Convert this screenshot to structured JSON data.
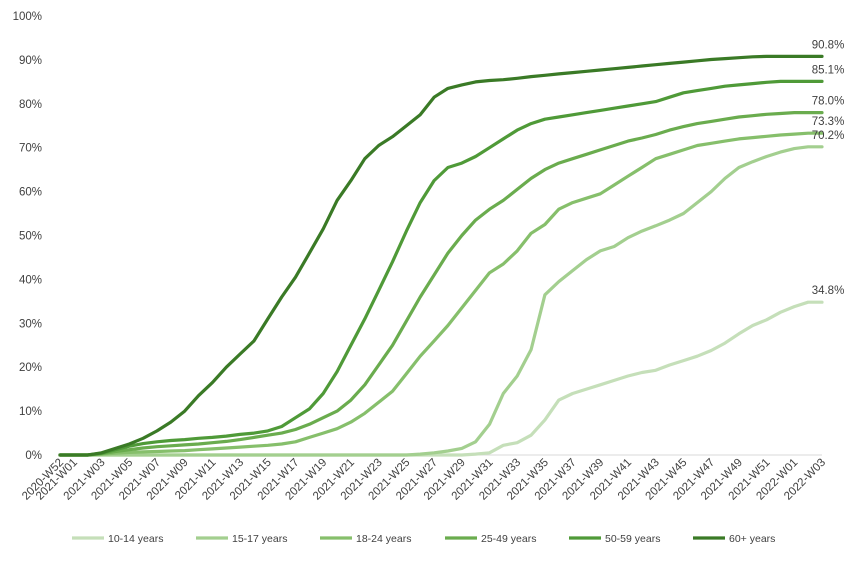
{
  "chart_data": {
    "type": "line",
    "y_ticks": [
      "0%",
      "10%",
      "20%",
      "30%",
      "40%",
      "50%",
      "60%",
      "70%",
      "80%",
      "90%",
      "100%"
    ],
    "ylim": [
      0,
      100
    ],
    "x_tick_labels": [
      "2020-W52",
      "2021-W01",
      "2021-W03",
      "2021-W05",
      "2021-W07",
      "2021-W09",
      "2021-W11",
      "2021-W13",
      "2021-W15",
      "2021-W17",
      "2021-W19",
      "2021-W21",
      "2021-W23",
      "2021-W25",
      "2021-W27",
      "2021-W29",
      "2021-W31",
      "2021-W33",
      "2021-W35",
      "2021-W37",
      "2021-W39",
      "2021-W41",
      "2021-W43",
      "2021-W45",
      "2021-W47",
      "2021-W49",
      "2021-W51",
      "2022-W01",
      "2022-W03"
    ],
    "x_tick_indices": [
      0,
      1,
      3,
      5,
      7,
      9,
      11,
      13,
      15,
      17,
      19,
      21,
      23,
      25,
      27,
      29,
      31,
      33,
      35,
      37,
      39,
      41,
      43,
      45,
      47,
      49,
      51,
      53,
      55
    ],
    "num_points": 56,
    "grid": false,
    "legend_position": "bottom",
    "series": [
      {
        "name": "10-14 years",
        "color": "#c5dfb9",
        "end_label": "34.8%",
        "values": [
          0,
          0,
          0,
          0,
          0,
          0,
          0,
          0,
          0,
          0,
          0,
          0,
          0,
          0,
          0,
          0,
          0,
          0,
          0,
          0,
          0,
          0,
          0,
          0,
          0,
          0,
          0,
          0,
          0,
          0,
          0.2,
          0.5,
          2.2,
          2.8,
          4.5,
          8.0,
          12.5,
          14.0,
          15.0,
          16.0,
          17.0,
          18.0,
          18.8,
          19.3,
          20.5,
          21.5,
          22.5,
          23.8,
          25.5,
          27.6,
          29.5,
          30.8,
          32.5,
          33.8,
          34.8,
          34.8
        ]
      },
      {
        "name": "15-17 years",
        "color": "#a3cf8f",
        "end_label": "70.2%",
        "values": [
          0,
          0,
          0,
          0,
          0,
          0,
          0,
          0,
          0,
          0,
          0,
          0,
          0,
          0,
          0,
          0,
          0,
          0,
          0,
          0,
          0,
          0,
          0,
          0,
          0,
          0,
          0.2,
          0.5,
          0.9,
          1.5,
          3.0,
          7.0,
          14.0,
          18.0,
          24.0,
          36.5,
          39.5,
          42.0,
          44.5,
          46.5,
          47.5,
          49.5,
          51.0,
          52.2,
          53.5,
          55.0,
          57.5,
          60.0,
          63.0,
          65.5,
          66.8,
          68.0,
          69.0,
          69.8,
          70.2,
          70.2
        ]
      },
      {
        "name": "18-24 years",
        "color": "#86bf6b",
        "end_label": "73.3%",
        "values": [
          0,
          0,
          0,
          0.2,
          0.4,
          0.6,
          0.7,
          0.8,
          0.9,
          1.0,
          1.2,
          1.4,
          1.6,
          1.8,
          2.0,
          2.2,
          2.5,
          3.0,
          4.0,
          5.0,
          6.0,
          7.5,
          9.5,
          12.0,
          14.5,
          18.5,
          22.5,
          26.0,
          29.5,
          33.5,
          37.5,
          41.5,
          43.5,
          46.5,
          50.5,
          52.5,
          56.0,
          57.5,
          58.5,
          59.5,
          61.5,
          63.5,
          65.5,
          67.5,
          68.5,
          69.5,
          70.5,
          71.0,
          71.5,
          72.0,
          72.3,
          72.6,
          72.9,
          73.1,
          73.3,
          73.3
        ]
      },
      {
        "name": "25-49 years",
        "color": "#6aac4e",
        "end_label": "78.0%",
        "values": [
          0,
          0,
          0,
          0.3,
          0.8,
          1.2,
          1.6,
          1.9,
          2.1,
          2.3,
          2.5,
          2.8,
          3.1,
          3.5,
          4.0,
          4.5,
          5.0,
          5.8,
          7.0,
          8.5,
          10.0,
          12.5,
          16.0,
          20.5,
          25.0,
          30.5,
          36.0,
          41.0,
          46.0,
          50.0,
          53.5,
          56.0,
          58.0,
          60.5,
          63.0,
          65.0,
          66.5,
          67.5,
          68.5,
          69.5,
          70.5,
          71.5,
          72.2,
          73.0,
          74.0,
          74.8,
          75.5,
          76.0,
          76.5,
          77.0,
          77.3,
          77.6,
          77.8,
          78.0,
          78.0,
          78.0
        ]
      },
      {
        "name": "50-59 years",
        "color": "#4f9a38",
        "end_label": "85.1%",
        "values": [
          0,
          0,
          0,
          0.4,
          1.2,
          2.0,
          2.6,
          3.0,
          3.3,
          3.5,
          3.8,
          4.0,
          4.3,
          4.7,
          5.0,
          5.5,
          6.5,
          8.5,
          10.5,
          14.0,
          19.0,
          25.0,
          31.0,
          37.5,
          44.0,
          51.0,
          57.5,
          62.5,
          65.5,
          66.5,
          68.0,
          70.0,
          72.0,
          74.0,
          75.5,
          76.5,
          77.0,
          77.5,
          78.0,
          78.5,
          79.0,
          79.5,
          80.0,
          80.5,
          81.5,
          82.5,
          83.0,
          83.5,
          84.0,
          84.3,
          84.6,
          84.9,
          85.1,
          85.1,
          85.1,
          85.1
        ]
      },
      {
        "name": "60+ years",
        "color": "#3a7a26",
        "end_label": "90.8%",
        "values": [
          0,
          0,
          0,
          0.5,
          1.5,
          2.5,
          3.8,
          5.5,
          7.5,
          10.0,
          13.5,
          16.5,
          20.0,
          23.0,
          26.0,
          31.0,
          36.0,
          40.5,
          46.0,
          51.5,
          58.0,
          62.5,
          67.5,
          70.5,
          72.5,
          75.0,
          77.5,
          81.5,
          83.5,
          84.3,
          85.0,
          85.3,
          85.5,
          85.8,
          86.2,
          86.5,
          86.8,
          87.1,
          87.4,
          87.7,
          88.0,
          88.3,
          88.6,
          88.9,
          89.2,
          89.5,
          89.8,
          90.1,
          90.3,
          90.5,
          90.7,
          90.8,
          90.8,
          90.8,
          90.8,
          90.8
        ]
      }
    ]
  }
}
